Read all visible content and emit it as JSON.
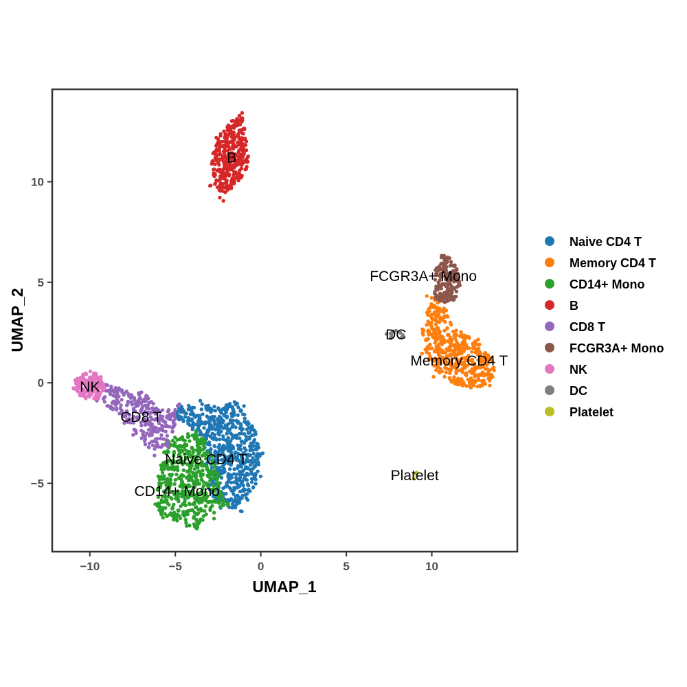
{
  "chart_data": {
    "type": "scatter",
    "xlabel": "UMAP_1",
    "ylabel": "UMAP_2",
    "xlim": [
      -12.2,
      15
    ],
    "ylim": [
      -8.4,
      14.6
    ],
    "x_ticks": [
      {
        "value": -10,
        "label": "−10"
      },
      {
        "value": -5,
        "label": "−5"
      },
      {
        "value": 0,
        "label": "0"
      },
      {
        "value": 5,
        "label": "5"
      },
      {
        "value": 10,
        "label": "10"
      }
    ],
    "y_ticks": [
      {
        "value": -5,
        "label": "−5"
      },
      {
        "value": 0,
        "label": "0"
      },
      {
        "value": 5,
        "label": "5"
      },
      {
        "value": 10,
        "label": "10"
      }
    ],
    "grid": false,
    "legend_position": "right",
    "series": [
      {
        "name": "Naive CD4 T",
        "color": "#1f77b4",
        "polygon": [
          [
            -5,
            -1.2
          ],
          [
            -3.3,
            -1.0
          ],
          [
            -2.2,
            -1.2
          ],
          [
            -1.6,
            -0.8
          ],
          [
            -1.0,
            -1.4
          ],
          [
            -0.3,
            -2.3
          ],
          [
            0.0,
            -3.5
          ],
          [
            -0.2,
            -4.8
          ],
          [
            -0.6,
            -5.7
          ],
          [
            -1.4,
            -6.3
          ],
          [
            -2.4,
            -6.1
          ],
          [
            -3.0,
            -5.4
          ],
          [
            -3.2,
            -4.0
          ],
          [
            -3.4,
            -2.7
          ],
          [
            -4.4,
            -2.1
          ],
          [
            -5.1,
            -1.6
          ]
        ],
        "centroid": [
          -2.5,
          -3.7
        ],
        "label_xy": [
          -3.2,
          -3.8
        ],
        "n": 650
      },
      {
        "name": "Memory CD4 T",
        "color": "#ff7f0e",
        "polygon": [
          [
            10.0,
            4.2
          ],
          [
            10.6,
            4.0
          ],
          [
            11.1,
            3.0
          ],
          [
            11.8,
            2.5
          ],
          [
            12.7,
            2.0
          ],
          [
            13.5,
            1.2
          ],
          [
            13.7,
            0.5
          ],
          [
            13.3,
            -0.1
          ],
          [
            12.3,
            -0.3
          ],
          [
            11.2,
            0.0
          ],
          [
            10.2,
            0.6
          ],
          [
            9.6,
            1.4
          ],
          [
            9.3,
            2.3
          ],
          [
            9.6,
            3.2
          ]
        ],
        "centroid": [
          11.3,
          1.6
        ],
        "label_xy": [
          11.6,
          1.1
        ],
        "n": 470
      },
      {
        "name": "CD14+ Mono",
        "color": "#2ca02c",
        "polygon": [
          [
            -5.5,
            -2.9
          ],
          [
            -4.3,
            -2.4
          ],
          [
            -3.3,
            -2.7
          ],
          [
            -3.0,
            -3.5
          ],
          [
            -2.4,
            -4.7
          ],
          [
            -2.1,
            -6.2
          ],
          [
            -3.0,
            -6.6
          ],
          [
            -3.7,
            -7.3
          ],
          [
            -4.4,
            -7.0
          ],
          [
            -5.7,
            -6.8
          ],
          [
            -6.2,
            -6.0
          ],
          [
            -6.1,
            -4.9
          ],
          [
            -5.8,
            -3.9
          ]
        ],
        "centroid": [
          -4.4,
          -5.0
        ],
        "label_xy": [
          -4.9,
          -5.4
        ],
        "n": 500
      },
      {
        "name": "B",
        "color": "#d62728",
        "polygon": [
          [
            -1.1,
            13.5
          ],
          [
            -0.9,
            12.5
          ],
          [
            -0.7,
            11.2
          ],
          [
            -0.9,
            10.4
          ],
          [
            -1.6,
            9.8
          ],
          [
            -2.2,
            9.3
          ],
          [
            -2.7,
            9.9
          ],
          [
            -2.9,
            11.0
          ],
          [
            -2.6,
            12.2
          ],
          [
            -1.8,
            12.9
          ]
        ],
        "centroid": [
          -1.8,
          11.3
        ],
        "label_xy": [
          -1.7,
          11.2
        ],
        "n": 330
      },
      {
        "name": "CD8 T",
        "color": "#9467bd",
        "polygon": [
          [
            -9.5,
            0.1
          ],
          [
            -8.3,
            -0.3
          ],
          [
            -6.6,
            -0.5
          ],
          [
            -6.0,
            -1.4
          ],
          [
            -4.8,
            -1.1
          ],
          [
            -5.0,
            -2.2
          ],
          [
            -5.3,
            -3.2
          ],
          [
            -6.2,
            -3.5
          ],
          [
            -7.3,
            -2.8
          ],
          [
            -8.3,
            -1.8
          ],
          [
            -9.4,
            -0.9
          ]
        ],
        "centroid": [
          -7.3,
          -1.5
        ],
        "label_xy": [
          -7.0,
          -1.7
        ],
        "n": 280
      },
      {
        "name": "FCGR3A+ Mono",
        "color": "#8c564b",
        "polygon": [
          [
            10.6,
            6.4
          ],
          [
            11.2,
            6.3
          ],
          [
            11.5,
            5.6
          ],
          [
            11.7,
            4.7
          ],
          [
            11.3,
            4.1
          ],
          [
            10.3,
            3.9
          ],
          [
            10.1,
            4.6
          ],
          [
            10.2,
            5.6
          ]
        ],
        "centroid": [
          10.9,
          5.1
        ],
        "label_xy": [
          9.5,
          5.3
        ],
        "n": 170
      },
      {
        "name": "NK",
        "color": "#e377c2",
        "polygon": [
          [
            -10.0,
            0.6
          ],
          [
            -9.4,
            0.4
          ],
          [
            -9.1,
            -0.2
          ],
          [
            -9.5,
            -0.8
          ],
          [
            -10.3,
            -0.8
          ],
          [
            -11.0,
            -0.4
          ],
          [
            -10.9,
            0.2
          ]
        ],
        "centroid": [
          -10.1,
          -0.2
        ],
        "label_xy": [
          -10.0,
          -0.2
        ],
        "n": 150
      },
      {
        "name": "DC",
        "color": "#7f7f7f",
        "polygon": [
          [
            7.2,
            2.6
          ],
          [
            8.5,
            2.6
          ],
          [
            8.6,
            2.2
          ],
          [
            7.3,
            2.2
          ]
        ],
        "centroid": [
          7.9,
          2.4
        ],
        "label_xy": [
          7.9,
          2.4
        ],
        "n": 12
      },
      {
        "name": "Platelet",
        "color": "#bcbd22",
        "polygon": [
          [
            8.85,
            -4.4
          ],
          [
            9.15,
            -4.4
          ],
          [
            9.1,
            -4.8
          ],
          [
            8.9,
            -4.8
          ]
        ],
        "centroid": [
          9.0,
          -4.6
        ],
        "label_xy": [
          9.0,
          -4.6
        ],
        "n": 4
      }
    ]
  }
}
